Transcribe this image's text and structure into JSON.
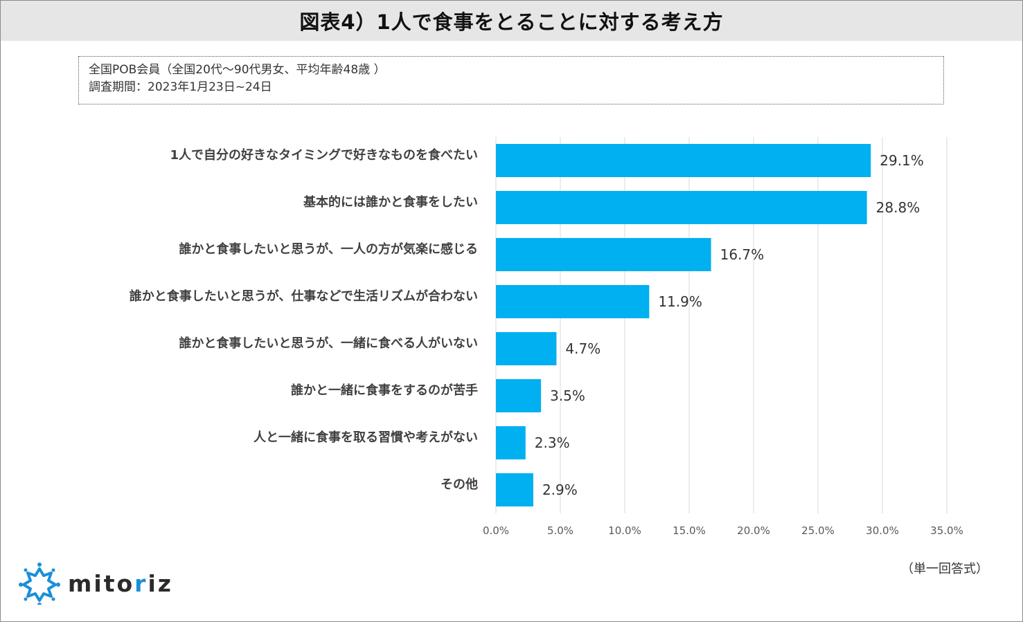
{
  "title": "図表4）1人で食事をとることに対する考え方",
  "info": {
    "line1": "全国POB会員（全国20代～90代男女、平均年齢48歳 ）",
    "line2": "調査期間：2023年1月23日~24日"
  },
  "note": "（単一回答式）",
  "logo": {
    "prefix": "mito",
    "accent": "r",
    "suffix": "iz"
  },
  "colors": {
    "bar": "#00b0f0",
    "grid": "#d9d9d9",
    "title_bg": "#e6e6e6"
  },
  "chart_data": {
    "type": "bar",
    "orientation": "horizontal",
    "title": "図表4）1人で食事をとることに対する考え方",
    "categories": [
      "1人で自分の好きなタイミングで好きなものを食べたい",
      "基本的には誰かと食事をしたい",
      "誰かと食事したいと思うが、一人の方が気楽に感じる",
      "誰かと食事したいと思うが、仕事などで生活リズムが合わない",
      "誰かと食事したいと思うが、一緒に食べる人がいない",
      "誰かと一緒に食事をするのが苦手",
      "人と一緒に食事を取る習慣や考えがない",
      "その他"
    ],
    "values": [
      29.1,
      28.8,
      16.7,
      11.9,
      4.7,
      3.5,
      2.3,
      2.9
    ],
    "value_labels": [
      "29.1%",
      "28.8%",
      "16.7%",
      "11.9%",
      "4.7%",
      "3.5%",
      "2.3%",
      "2.9%"
    ],
    "xlim": [
      0,
      35
    ],
    "ticks": [
      0,
      5,
      10,
      15,
      20,
      25,
      30,
      35
    ],
    "tick_labels": [
      "0.0%",
      "5.0%",
      "10.0%",
      "15.0%",
      "20.0%",
      "25.0%",
      "30.0%",
      "35.0%"
    ],
    "grid": true,
    "legend": "none"
  }
}
